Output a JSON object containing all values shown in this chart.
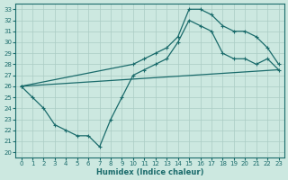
{
  "title": "",
  "xlabel": "Humidex (Indice chaleur)",
  "ylabel": "",
  "xlim": [
    -0.5,
    23.5
  ],
  "ylim": [
    19.5,
    33.5
  ],
  "xticks": [
    0,
    1,
    2,
    3,
    4,
    5,
    6,
    7,
    8,
    9,
    10,
    11,
    12,
    13,
    14,
    15,
    16,
    17,
    18,
    19,
    20,
    21,
    22,
    23
  ],
  "yticks": [
    20,
    21,
    22,
    23,
    24,
    25,
    26,
    27,
    28,
    29,
    30,
    31,
    32,
    33
  ],
  "bg_color": "#cce8e0",
  "grid_color": "#aaccC4",
  "line_color": "#1a6b6b",
  "line1_x": [
    0,
    1,
    2,
    3,
    4,
    5,
    6,
    7,
    8,
    9,
    10,
    11,
    12,
    13,
    14,
    15,
    16,
    17,
    18,
    19,
    20,
    21,
    22,
    23
  ],
  "line1_y": [
    26,
    25,
    24,
    22.5,
    22,
    21.5,
    21.5,
    20.5,
    23,
    25,
    27,
    27.5,
    28,
    28.5,
    30,
    32,
    31.5,
    31,
    29,
    28.5,
    28.5,
    28,
    28.5,
    27.5
  ],
  "line2_x": [
    0,
    10,
    11,
    12,
    13,
    14,
    15,
    16,
    17,
    18,
    19,
    20,
    21,
    22,
    23
  ],
  "line2_y": [
    26,
    28,
    28.5,
    29,
    29.5,
    30.5,
    33,
    33,
    32.5,
    31.5,
    31,
    31,
    30.5,
    29.5,
    28
  ],
  "line3_x": [
    0,
    23
  ],
  "line3_y": [
    26,
    27.5
  ]
}
